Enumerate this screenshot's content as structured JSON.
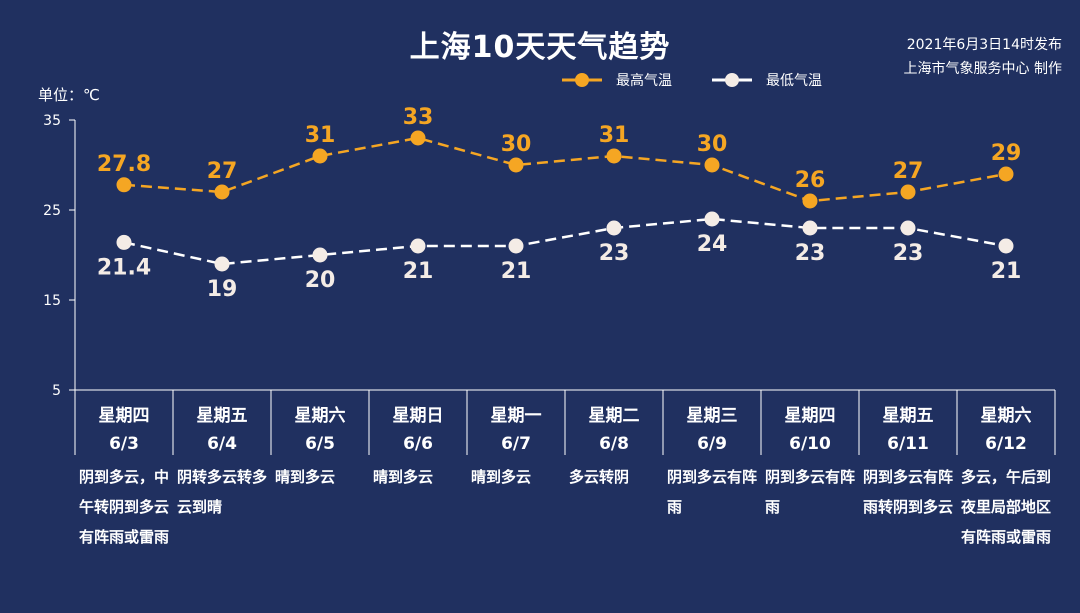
{
  "title": "上海10天天气趋势",
  "publish": {
    "line1": "2021年6月3日14时发布",
    "line2": "上海市气象服务中心 制作"
  },
  "unit_label": "单位：℃",
  "colors": {
    "background": "#203060",
    "high": "#f5a623",
    "low": "#ffffff",
    "axis": "#ffffff"
  },
  "chart_data": {
    "type": "line",
    "ylim": [
      5,
      35
    ],
    "yticks": [
      "35",
      "25",
      "15",
      "5"
    ],
    "legend_position": "top",
    "categories": [
      {
        "weekday": "星期四",
        "date": "6/3"
      },
      {
        "weekday": "星期五",
        "date": "6/4"
      },
      {
        "weekday": "星期六",
        "date": "6/5"
      },
      {
        "weekday": "星期日",
        "date": "6/6"
      },
      {
        "weekday": "星期一",
        "date": "6/7"
      },
      {
        "weekday": "星期二",
        "date": "6/8"
      },
      {
        "weekday": "星期三",
        "date": "6/9"
      },
      {
        "weekday": "星期四",
        "date": "6/10"
      },
      {
        "weekday": "星期五",
        "date": "6/11"
      },
      {
        "weekday": "星期六",
        "date": "6/12"
      }
    ],
    "series": [
      {
        "name": "最高气温",
        "color": "#f5a623",
        "values": [
          27.8,
          27,
          31,
          33,
          30,
          31,
          30,
          26,
          27,
          29
        ],
        "labels": [
          "27.8",
          "27",
          "31",
          "33",
          "30",
          "31",
          "30",
          "26",
          "27",
          "29"
        ]
      },
      {
        "name": "最低气温",
        "color": "#ffffff",
        "values": [
          21.4,
          19,
          20,
          21,
          21,
          23,
          24,
          23,
          23,
          21
        ],
        "labels": [
          "21.4",
          "19",
          "20",
          "21",
          "21",
          "23",
          "24",
          "23",
          "23",
          "21"
        ]
      }
    ],
    "weather": [
      "阴到多云，中午转阴到多云有阵雨或雷雨",
      "阴转多云转多云到晴",
      "晴到多云",
      "晴到多云",
      "晴到多云",
      "多云转阴",
      "阴到多云有阵雨",
      "阴到多云有阵雨",
      "阴到多云有阵雨转阴到多云",
      "多云，午后到夜里局部地区有阵雨或雷雨"
    ]
  }
}
